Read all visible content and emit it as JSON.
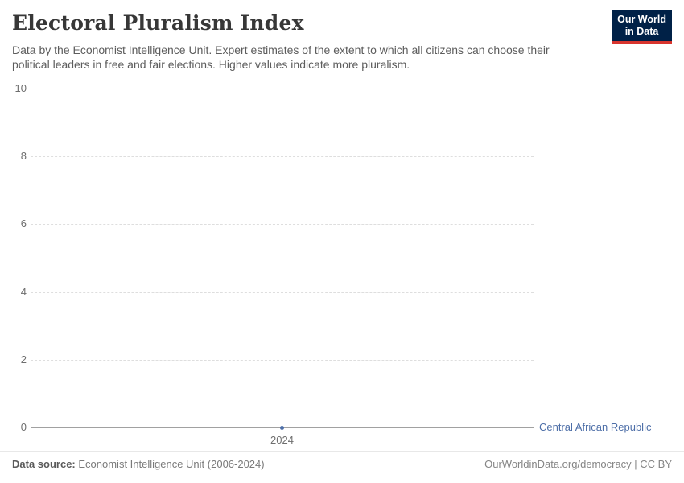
{
  "header": {
    "title": "Electoral Pluralism Index",
    "subtitle_line1": "Data by the Economist Intelligence Unit. Expert estimates of the extent to which all citizens can choose their",
    "subtitle_line2": "political leaders in free and fair elections. Higher values indicate more pluralism.",
    "logo": {
      "line1": "Our World",
      "line2": "in Data"
    }
  },
  "chart_data": {
    "type": "line",
    "title": "Electoral Pluralism Index",
    "xlabel": "",
    "ylabel": "",
    "ylim": [
      0,
      10
    ],
    "yticks": [
      0,
      2,
      4,
      6,
      8,
      10
    ],
    "xticks": [
      2024
    ],
    "grid": "horizontal-dashed",
    "legend_position": "right-of-axis",
    "series": [
      {
        "name": "Central African Republic",
        "x": [
          2024
        ],
        "values": [
          0
        ],
        "color": "#4e6fa8",
        "marker": "dot"
      }
    ]
  },
  "footer": {
    "source_label": "Data source:",
    "source_text": " Economist Intelligence Unit (2006-2024)",
    "right_text": "OurWorldinData.org/democracy | CC BY"
  },
  "colors": {
    "accent_blue": "#4e6fa8",
    "logo_navy": "#002147",
    "logo_red": "#d8352e",
    "gridline": "#dedede",
    "axis_line": "#a1a1a1",
    "title_text": "#373737",
    "subtitle_text": "#5d5d5d"
  }
}
